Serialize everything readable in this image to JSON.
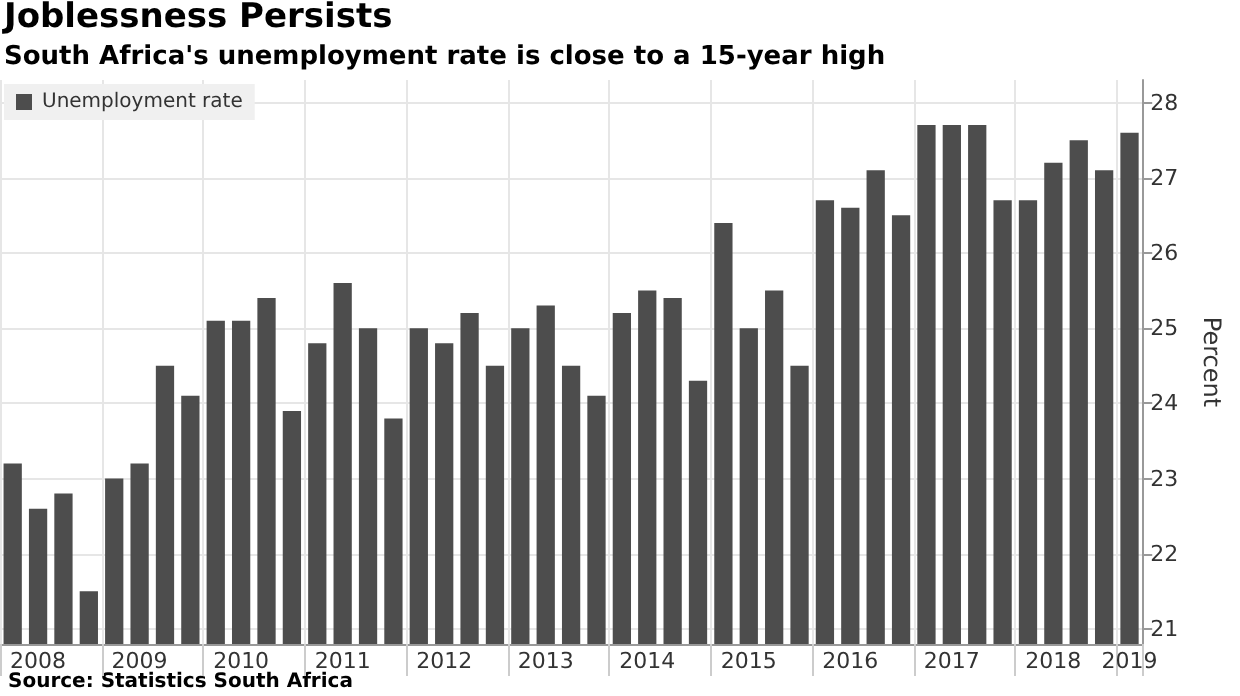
{
  "chart_data": {
    "type": "bar",
    "title": "Joblessness Persists",
    "subtitle": "South Africa's unemployment rate is close to a 15-year high",
    "ylabel": "Percent",
    "annotations": [
      "Source: Statistics South Africa"
    ],
    "categories": [
      null,
      "2008",
      null,
      null,
      null,
      "2009",
      null,
      null,
      null,
      "2010",
      null,
      null,
      null,
      "2011",
      null,
      null,
      null,
      "2012",
      null,
      null,
      null,
      "2013",
      null,
      null,
      null,
      "2014",
      null,
      null,
      null,
      "2015",
      null,
      null,
      null,
      "2016",
      null,
      null,
      null,
      "2017",
      null,
      null,
      null,
      "2018",
      null,
      null,
      "2019"
    ],
    "series": [
      {
        "name": "Unemployment rate",
        "color": "#4d4d4d",
        "values": [
          23.2,
          22.6,
          22.8,
          21.5,
          23.0,
          23.2,
          24.5,
          24.1,
          25.1,
          25.1,
          25.4,
          23.9,
          24.8,
          25.6,
          25.0,
          23.8,
          25.0,
          24.8,
          25.2,
          24.5,
          25.0,
          25.3,
          24.5,
          24.1,
          25.2,
          25.5,
          25.4,
          24.3,
          26.4,
          25.0,
          25.5,
          24.5,
          26.7,
          26.6,
          27.1,
          26.5,
          27.7,
          27.7,
          27.7,
          26.7,
          26.7,
          27.2,
          27.5,
          27.1,
          27.6
        ]
      }
    ],
    "ylim": [
      20.8,
      28.3
    ],
    "yticks": [
      21,
      22,
      23,
      24,
      25,
      26,
      27,
      28
    ],
    "grid": true,
    "legend": "top left"
  }
}
